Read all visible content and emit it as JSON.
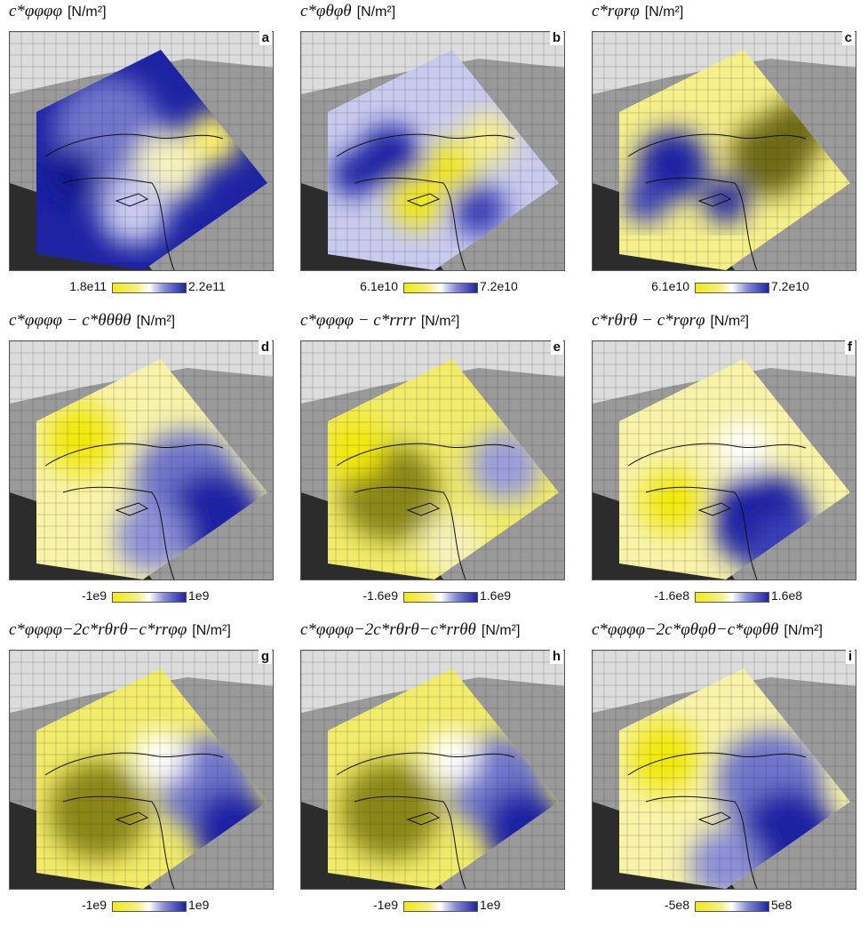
{
  "figure": {
    "unit_label": "[N/m²]",
    "panels": [
      {
        "label": "a",
        "title": "c*φφφφ",
        "cb_min": "1.8e11",
        "cb_max": "2.2e11"
      },
      {
        "label": "b",
        "title": "c*φθφθ",
        "cb_min": "6.1e10",
        "cb_max": "7.2e10"
      },
      {
        "label": "c",
        "title": "c*rφrφ",
        "cb_min": "6.1e10",
        "cb_max": "7.2e10"
      },
      {
        "label": "d",
        "title": "c*φφφφ − c*θθθθ",
        "cb_min": "-1e9",
        "cb_max": "1e9"
      },
      {
        "label": "e",
        "title": "c*φφφφ − c*rrrr",
        "cb_min": "-1.6e9",
        "cb_max": "1.6e9"
      },
      {
        "label": "f",
        "title": "c*rθrθ − c*rφrφ",
        "cb_min": "-1.6e8",
        "cb_max": "1.6e8"
      },
      {
        "label": "g",
        "title": "c*φφφφ−2c*rθrθ−c*rrφφ",
        "cb_min": "-1e9",
        "cb_max": "1e9"
      },
      {
        "label": "h",
        "title": "c*φφφφ−2c*rθrθ−c*rrθθ",
        "cb_min": "-1e9",
        "cb_max": "1e9"
      },
      {
        "label": "i",
        "title": "c*φφφφ−2c*φθφθ−c*φφθθ",
        "cb_min": "-5e8",
        "cb_max": "5e8"
      }
    ]
  },
  "colors": {
    "yellow": "#f2e90f",
    "white": "#ffffff",
    "blue": "#1c23a6",
    "terrain_dark": "#2c2c2c",
    "terrain_light": "#9a9a9a"
  }
}
